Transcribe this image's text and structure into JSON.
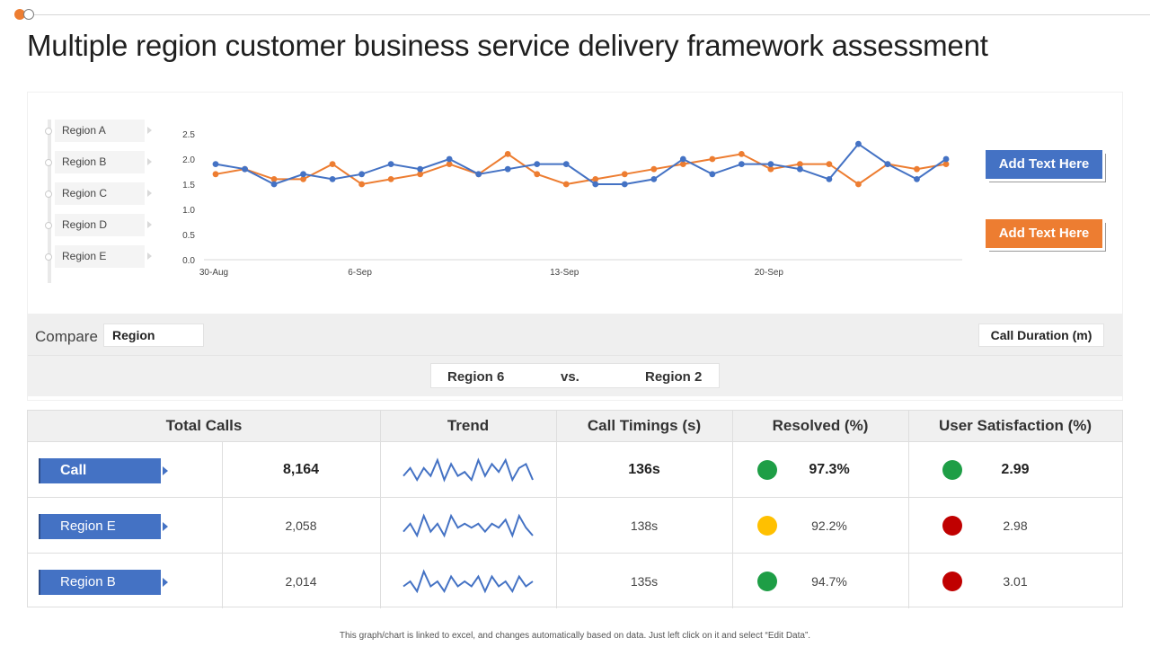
{
  "title": "Multiple region customer business service delivery framework assessment",
  "legend": [
    "Region A",
    "Region B",
    "Region C",
    "Region D",
    "Region E"
  ],
  "buttons": {
    "blue": "Add  Text Here",
    "orange": "Add  Text Here"
  },
  "compare": {
    "label": "Compare",
    "value": "Region",
    "metric": "Call Duration (m)"
  },
  "versus": {
    "left": "Region 6",
    "vs": "vs.",
    "right": "Region 2"
  },
  "colors": {
    "blue": "#4472c4",
    "orange": "#ed7d31",
    "green": "#1e9e46",
    "yellow": "#ffc000",
    "red": "#c00000"
  },
  "chart_data": {
    "type": "line",
    "y_ticks": [
      "2.5",
      "2.0",
      "1.5",
      "1.0",
      "0.5",
      "0.0"
    ],
    "ylim": [
      0,
      2.5
    ],
    "x_ticks": [
      {
        "label": "30-Aug",
        "index": 0
      },
      {
        "label": "6-Sep",
        "index": 5
      },
      {
        "label": "13-Sep",
        "index": 12
      },
      {
        "label": "20-Sep",
        "index": 19
      }
    ],
    "series": [
      {
        "name": "blue",
        "color": "#4472c4",
        "values": [
          1.9,
          1.8,
          1.5,
          1.7,
          1.6,
          1.7,
          1.9,
          1.8,
          2.0,
          1.7,
          1.8,
          1.9,
          1.9,
          1.5,
          1.5,
          1.6,
          2.0,
          1.7,
          1.9,
          1.9,
          1.8,
          1.6,
          2.3,
          1.9,
          1.6,
          2.0
        ]
      },
      {
        "name": "orange",
        "color": "#ed7d31",
        "values": [
          1.7,
          1.8,
          1.6,
          1.6,
          1.9,
          1.5,
          1.6,
          1.7,
          1.9,
          1.7,
          2.1,
          1.7,
          1.5,
          1.6,
          1.7,
          1.8,
          1.9,
          2.0,
          2.1,
          1.8,
          1.9,
          1.9,
          1.5,
          1.9,
          1.8,
          1.9
        ]
      }
    ]
  },
  "table": {
    "headers": [
      "Total Calls",
      "Trend",
      "Call Timings (s)",
      "Resolved (%)",
      "User Satisfaction (%)"
    ],
    "rows": [
      {
        "label": "Call",
        "total": "8,164",
        "timing": "136s",
        "resolved": "97.3%",
        "resolved_status": "#1e9e46",
        "satisfaction": "2.99",
        "satisfaction_status": "#1e9e46",
        "trend": [
          2,
          4,
          1,
          4,
          2,
          6,
          1,
          5,
          2,
          3,
          1,
          6,
          2,
          5,
          3,
          6,
          1,
          4,
          5,
          1
        ]
      },
      {
        "label": "Region E",
        "total": "2,058",
        "timing": "138s",
        "resolved": "92.2%",
        "resolved_status": "#ffc000",
        "satisfaction": "2.98",
        "satisfaction_status": "#c00000",
        "trend": [
          2,
          4,
          1,
          6,
          2,
          4,
          1,
          6,
          3,
          4,
          3,
          4,
          2,
          4,
          3,
          5,
          1,
          6,
          3,
          1
        ]
      },
      {
        "label": "Region B",
        "total": "2,014",
        "timing": "135s",
        "resolved": "94.7%",
        "resolved_status": "#1e9e46",
        "satisfaction": "3.01",
        "satisfaction_status": "#c00000",
        "trend": [
          2,
          3,
          1,
          5,
          2,
          3,
          1,
          4,
          2,
          3,
          2,
          4,
          1,
          4,
          2,
          3,
          1,
          4,
          2,
          3
        ]
      }
    ]
  },
  "footnote": "This graph/chart is linked to excel, and changes automatically based on data. Just left click on it and select “Edit Data”."
}
